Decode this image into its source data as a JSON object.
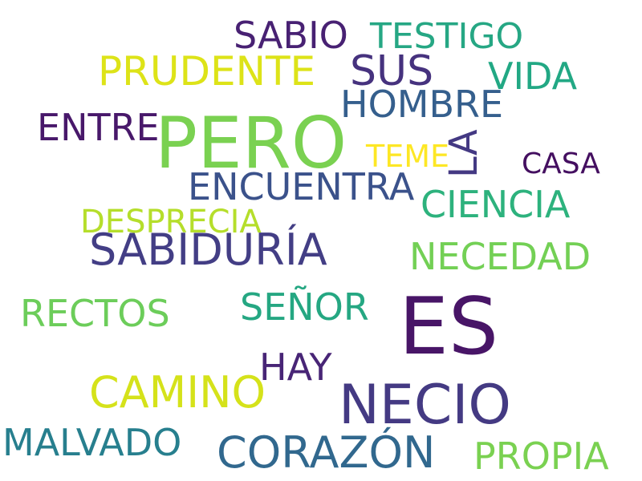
{
  "palette": {
    "dark_purple": "#481567",
    "indigo": "#453781",
    "slate_blue": "#39568c",
    "steel_teal": "#2d708e",
    "teal": "#238a8d",
    "green_teal": "#20a386",
    "medium_green": "#55c667",
    "light_green": "#73d055",
    "lime": "#b8de29",
    "yellow": "#dce319",
    "bright_yellow": "#fde725"
  },
  "words": [
    {
      "text": "ES",
      "color": "#481567"
    },
    {
      "text": "PERO",
      "color": "#7ad151"
    },
    {
      "text": "NECIO",
      "color": "#443a83"
    },
    {
      "text": "CORAZÓN",
      "color": "#31688e"
    },
    {
      "text": "SABIDURÍA",
      "color": "#433e85"
    },
    {
      "text": "CAMINO",
      "color": "#d5e21a"
    },
    {
      "text": "ENCUENTRA",
      "color": "#3b528b"
    },
    {
      "text": "LA",
      "color": "#443983"
    },
    {
      "text": "SUS",
      "color": "#46327e"
    },
    {
      "text": "PRUDENTE",
      "color": "#dde318"
    },
    {
      "text": "SABIO",
      "color": "#482173"
    },
    {
      "text": "TESTIGO",
      "color": "#26a784"
    },
    {
      "text": "HOMBRE",
      "color": "#355f8d"
    },
    {
      "text": "VIDA",
      "color": "#22a884"
    },
    {
      "text": "ENTRE",
      "color": "#48186a"
    },
    {
      "text": "TEME",
      "color": "#fde725"
    },
    {
      "text": "CASA",
      "color": "#440f60"
    },
    {
      "text": "CIENCIA",
      "color": "#2db27d"
    },
    {
      "text": "DESPRECIA",
      "color": "#b5de2b"
    },
    {
      "text": "NECEDAD",
      "color": "#73d055"
    },
    {
      "text": "RECTOS",
      "color": "#6ccd5a"
    },
    {
      "text": "SEÑOR",
      "color": "#25a782"
    },
    {
      "text": "HAY",
      "color": "#482576"
    },
    {
      "text": "MALVADO",
      "color": "#277f8e"
    },
    {
      "text": "PROPIA",
      "color": "#7ad151"
    }
  ]
}
